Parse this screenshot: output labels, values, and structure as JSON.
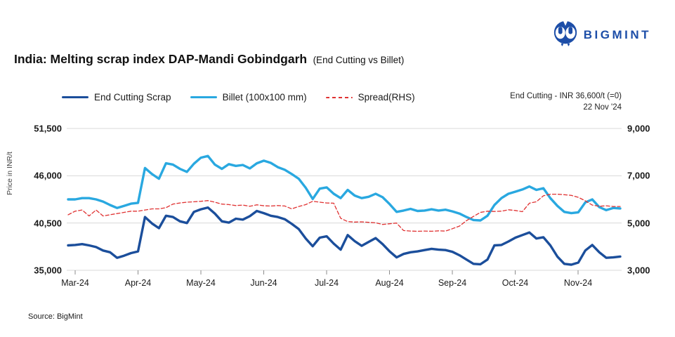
{
  "logo": {
    "brand": "BIGMINT",
    "color": "#1d4ea8"
  },
  "title": {
    "main": "India: Melting scrap index DAP-Mandi Gobindgarh",
    "suffix": "(End Cutting vs Billet)"
  },
  "legend": [
    {
      "label": "End Cutting Scrap",
      "color": "#1b4e9b",
      "style": "solid"
    },
    {
      "label": "Billet (100x100 mm)",
      "color": "#29a8e0",
      "style": "solid"
    },
    {
      "label": "Spread(RHS)",
      "color": "#e03232",
      "style": "dashed"
    }
  ],
  "annotation": {
    "line1": "End Cutting - INR 36,600/t (=0)",
    "line2": "22 Nov '24"
  },
  "source": "Source: BigMint",
  "chart_data": {
    "type": "line",
    "title": "India: Melting scrap index DAP-Mandi Gobindgarh (End Cutting vs Billet)",
    "x_categories": [
      "Mar-24",
      "Apr-24",
      "May-24",
      "Jun-24",
      "Jul-24",
      "Aug-24",
      "Sep-24",
      "Oct-24",
      "Nov-24"
    ],
    "grid": true,
    "legend_position": "top",
    "y_axis_left": {
      "label": "Price in INR/t",
      "ticks": [
        "51,500",
        "46,000",
        "40,500",
        "35,000"
      ],
      "min": 35000,
      "max": 51500
    },
    "y_axis_right": {
      "ticks": [
        "9,000",
        "7,000",
        "5,000",
        "3,000"
      ],
      "min": 3000,
      "max": 9000
    },
    "series": [
      {
        "name": "End Cutting Scrap",
        "axis": "left",
        "color": "#1b4e9b",
        "width": 3.4,
        "dash": "",
        "values": [
          37900,
          37950,
          38050,
          37900,
          37700,
          37300,
          37100,
          36450,
          36700,
          37000,
          37200,
          41200,
          40450,
          39900,
          41350,
          41200,
          40700,
          40500,
          41800,
          42100,
          42300,
          41600,
          40700,
          40550,
          41000,
          40900,
          41300,
          41900,
          41650,
          41350,
          41200,
          40950,
          40400,
          39800,
          38700,
          37800,
          38800,
          38950,
          38100,
          37400,
          39100,
          38400,
          37850,
          38300,
          38750,
          38050,
          37200,
          36500,
          36900,
          37100,
          37200,
          37350,
          37500,
          37400,
          37350,
          37150,
          36750,
          36250,
          35750,
          35700,
          36250,
          37900,
          37950,
          38350,
          38800,
          39100,
          39400,
          38700,
          38850,
          37900,
          36600,
          35750,
          35650,
          35900,
          37300,
          37950,
          37100,
          36450,
          36500,
          36600
        ]
      },
      {
        "name": "Billet (100x100 mm)",
        "axis": "left",
        "color": "#29a8e0",
        "width": 3.4,
        "dash": "",
        "values": [
          43250,
          43250,
          43400,
          43400,
          43250,
          43000,
          42600,
          42250,
          42500,
          42750,
          42850,
          46900,
          46200,
          45650,
          47450,
          47300,
          46800,
          46450,
          47400,
          48100,
          48300,
          47300,
          46800,
          47350,
          47150,
          47250,
          46850,
          47450,
          47750,
          47500,
          47000,
          46700,
          46200,
          45650,
          44600,
          43300,
          44500,
          44650,
          43900,
          43400,
          44350,
          43700,
          43400,
          43550,
          43900,
          43500,
          42700,
          41800,
          41950,
          42150,
          41900,
          41950,
          42100,
          41950,
          42050,
          41850,
          41600,
          41200,
          40850,
          40800,
          41350,
          42600,
          43400,
          43900,
          44150,
          44400,
          44750,
          44350,
          44550,
          43400,
          42500,
          41800,
          41650,
          41750,
          42900,
          43250,
          42350,
          42000,
          42250,
          42200
        ]
      },
      {
        "name": "Spread(RHS)",
        "axis": "right",
        "color": "#e03232",
        "width": 1.3,
        "dash": "5,3",
        "values": [
          5350,
          5500,
          5550,
          5300,
          5550,
          5300,
          5350,
          5400,
          5450,
          5500,
          5500,
          5550,
          5600,
          5600,
          5650,
          5800,
          5850,
          5880,
          5900,
          5920,
          5950,
          5880,
          5800,
          5780,
          5740,
          5760,
          5710,
          5770,
          5730,
          5720,
          5740,
          5720,
          5600,
          5700,
          5780,
          5920,
          5880,
          5850,
          5840,
          5200,
          5060,
          5040,
          5050,
          5030,
          5010,
          4940,
          4970,
          5000,
          4680,
          4660,
          4650,
          4660,
          4650,
          4670,
          4660,
          4760,
          4870,
          5100,
          5280,
          5450,
          5500,
          5490,
          5500,
          5560,
          5530,
          5480,
          5840,
          5900,
          6150,
          6220,
          6220,
          6200,
          6170,
          6090,
          5940,
          5760,
          5710,
          5730,
          5700,
          5700
        ]
      }
    ]
  }
}
